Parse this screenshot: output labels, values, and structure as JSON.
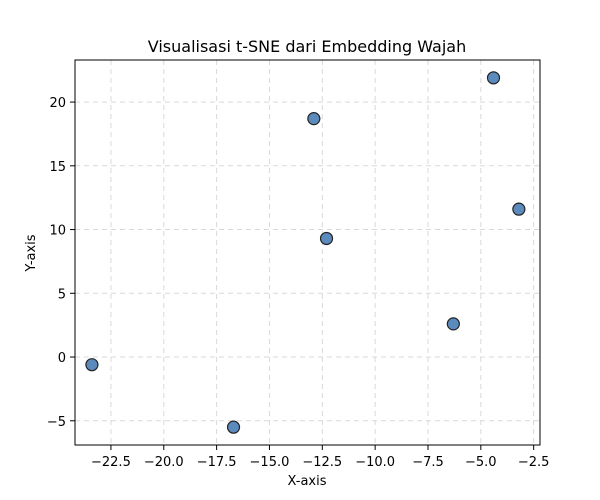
{
  "chart_data": {
    "type": "scatter",
    "title": "Visualisasi t-SNE dari Embedding Wajah",
    "xlabel": "X-axis",
    "ylabel": "Y-axis",
    "xlim": [
      -24.2,
      -2.2
    ],
    "ylim": [
      -6.9,
      23.3
    ],
    "xticks": [
      -22.5,
      -20.0,
      -17.5,
      -15.0,
      -12.5,
      -10.0,
      -7.5,
      -5.0,
      -2.5
    ],
    "xtick_labels": [
      "−22.5",
      "−20.0",
      "−17.5",
      "−15.0",
      "−12.5",
      "−10.0",
      "−7.5",
      "−5.0",
      "−2.5"
    ],
    "yticks": [
      -5,
      0,
      5,
      10,
      15,
      20
    ],
    "ytick_labels": [
      "−5",
      "0",
      "5",
      "10",
      "15",
      "20"
    ],
    "grid": true,
    "marker_color": "#5b8bbd",
    "marker_edge_color": "#222222",
    "points": [
      {
        "x": -23.4,
        "y": -0.6
      },
      {
        "x": -16.7,
        "y": -5.5
      },
      {
        "x": -12.9,
        "y": 18.7
      },
      {
        "x": -12.3,
        "y": 9.3
      },
      {
        "x": -6.3,
        "y": 2.6
      },
      {
        "x": -4.4,
        "y": 21.9
      },
      {
        "x": -3.2,
        "y": 11.6
      }
    ]
  }
}
